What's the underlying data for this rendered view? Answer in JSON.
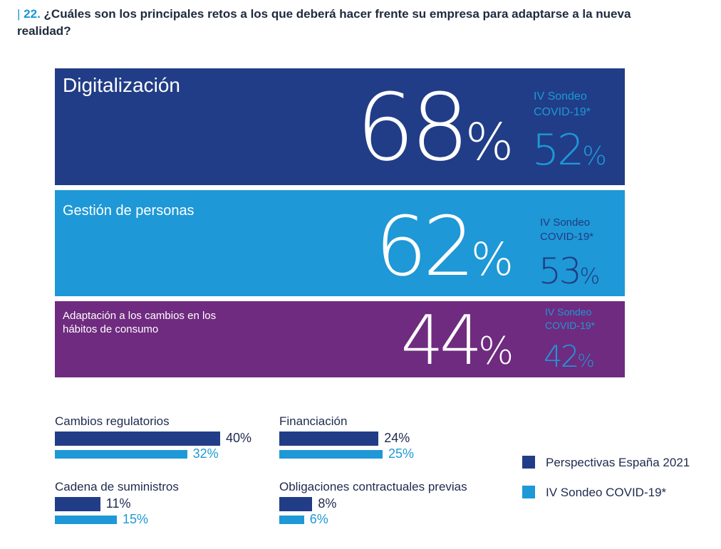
{
  "question": {
    "number": "22.",
    "text": "¿Cuáles son los principales retos a los que deberá hacer frente su empresa para adaptarse a la nueva realidad?"
  },
  "colors": {
    "primary": "#213d87",
    "secondary": "#1e98d6",
    "purple": "#6f2b7f"
  },
  "chart_data": [
    {
      "type": "bar",
      "categories": [
        "Digitalización",
        "Gestión de personas",
        "Adaptación a los cambios en los hábitos de consumo"
      ],
      "series": [
        {
          "name": "Perspectivas España 2021",
          "values": [
            68,
            62,
            44
          ]
        },
        {
          "name": "IV Sondeo COVID-19*",
          "values": [
            52,
            53,
            42
          ]
        }
      ],
      "unit": "%"
    },
    {
      "type": "bar",
      "categories": [
        "Cambios regulatorios",
        "Financiación",
        "Cadena de suministros",
        "Obligaciones contractuales previas"
      ],
      "series": [
        {
          "name": "Perspectivas España 2021",
          "values": [
            40,
            24,
            11,
            8
          ]
        },
        {
          "name": "IV Sondeo COVID-19*",
          "values": [
            32,
            25,
            15,
            6
          ]
        }
      ],
      "unit": "%",
      "legend": [
        "Perspectivas España 2021",
        "IV Sondeo COVID-19*"
      ]
    }
  ],
  "panels": [
    {
      "label": "Digitalización",
      "value": "68",
      "sondeo_label_1": "IV Sondeo",
      "sondeo_label_2": "COVID-19*",
      "sondeo_value": "52"
    },
    {
      "label": "Gestión de personas",
      "value": "62",
      "sondeo_label_1": "IV Sondeo",
      "sondeo_label_2": "COVID-19*",
      "sondeo_value": "53"
    },
    {
      "label": "Adaptación a los cambios en los hábitos de consumo",
      "value": "44",
      "sondeo_label_1": "IV Sondeo",
      "sondeo_label_2": "COVID-19*",
      "sondeo_value": "42"
    }
  ],
  "percent_sign": "%",
  "small_bars": [
    {
      "label": "Cambios regulatorios",
      "primary": "40%",
      "secondary": "32%"
    },
    {
      "label": "Financiación",
      "primary": "24%",
      "secondary": "25%"
    },
    {
      "label": "Cadena de suministros",
      "primary": "11%",
      "secondary": "15%"
    },
    {
      "label": "Obligaciones contractuales previas",
      "primary": "8%",
      "secondary": "6%"
    }
  ],
  "legend": {
    "primary_label": "Perspectivas España 2021",
    "secondary_label": "IV Sondeo COVID-19*"
  }
}
